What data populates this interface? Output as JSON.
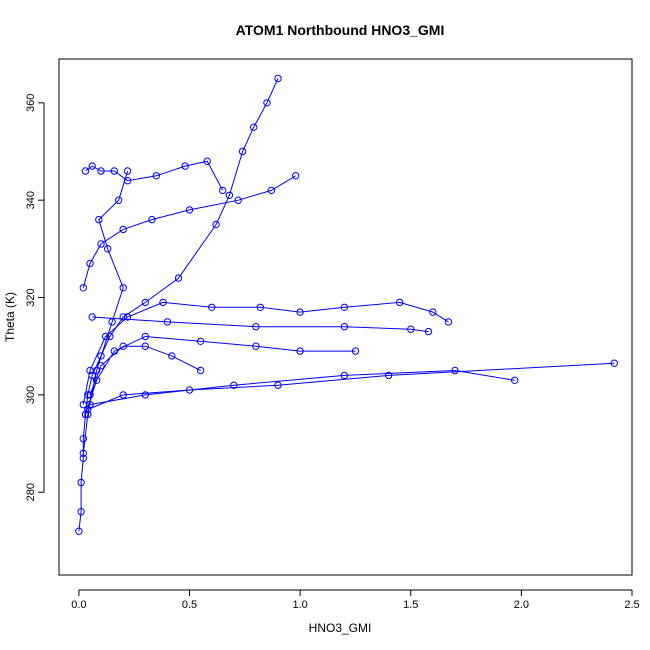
{
  "chart_data": {
    "type": "line",
    "title": "ATOM1 Northbound HNO3_GMI",
    "xlabel": "HNO3_GMI",
    "ylabel": "Theta (K)",
    "xlim": [
      -0.09,
      2.5
    ],
    "ylim": [
      263,
      369
    ],
    "x_ticks": [
      0.0,
      0.5,
      1.0,
      1.5,
      2.0,
      2.5
    ],
    "x_tick_labels": [
      "0.0",
      "0.5",
      "1.0",
      "1.5",
      "2.0",
      "2.5"
    ],
    "y_ticks": [
      280,
      300,
      320,
      340,
      360
    ],
    "y_tick_labels": [
      "280",
      "300",
      "320",
      "340",
      "360"
    ],
    "color": "#0000ff",
    "grid": false,
    "series": [
      {
        "x": [
          0.0,
          0.01,
          0.01,
          0.02,
          0.02,
          0.03,
          0.04,
          0.06,
          0.1,
          0.14,
          0.2,
          0.3,
          0.45,
          0.62,
          0.68,
          0.74,
          0.79,
          0.85,
          0.9
        ],
        "y": [
          272,
          276,
          282,
          287,
          291,
          296,
          300,
          304,
          308,
          312,
          316,
          319,
          324,
          335,
          341,
          350,
          355,
          360,
          365
        ]
      },
      {
        "x": [
          0.02,
          0.05,
          0.12,
          0.22,
          0.38,
          0.6,
          0.82,
          1.0,
          1.2,
          1.45,
          1.6,
          1.67
        ],
        "y": [
          298,
          305,
          312,
          316,
          319,
          318,
          318,
          317,
          318,
          319,
          317,
          315
        ]
      },
      {
        "x": [
          0.03,
          0.08,
          0.16,
          0.3,
          0.55,
          0.8,
          1.0,
          1.25
        ],
        "y": [
          296,
          303,
          309,
          312,
          311,
          310,
          309,
          309
        ]
      },
      {
        "x": [
          0.04,
          0.2,
          0.5,
          0.9,
          1.4,
          2.42
        ],
        "y": [
          297,
          300,
          301,
          302,
          304,
          306.5
        ]
      },
      {
        "x": [
          0.05,
          0.3,
          0.7,
          1.2,
          1.7,
          1.97
        ],
        "y": [
          298,
          300,
          302,
          304,
          305,
          303
        ]
      },
      {
        "x": [
          0.06,
          0.4,
          0.8,
          1.2,
          1.5,
          1.58
        ],
        "y": [
          316,
          315,
          314,
          314,
          313.5,
          313
        ]
      },
      {
        "x": [
          0.03,
          0.06,
          0.1,
          0.16,
          0.22,
          0.35,
          0.48,
          0.58,
          0.65
        ],
        "y": [
          346,
          347,
          346,
          346,
          344,
          345,
          347,
          348,
          342
        ]
      },
      {
        "x": [
          0.02,
          0.05,
          0.1,
          0.2,
          0.33,
          0.5,
          0.72,
          0.87,
          0.98
        ],
        "y": [
          322,
          327,
          331,
          334,
          336,
          338,
          340,
          342,
          345
        ]
      },
      {
        "x": [
          0.02,
          0.04,
          0.08,
          0.15,
          0.2,
          0.13,
          0.09,
          0.18,
          0.22
        ],
        "y": [
          288,
          296,
          305,
          315,
          322,
          330,
          336,
          340,
          346
        ]
      },
      {
        "x": [
          0.05,
          0.1,
          0.2,
          0.3,
          0.42,
          0.55
        ],
        "y": [
          300,
          306,
          310,
          310,
          308,
          305
        ]
      }
    ]
  }
}
